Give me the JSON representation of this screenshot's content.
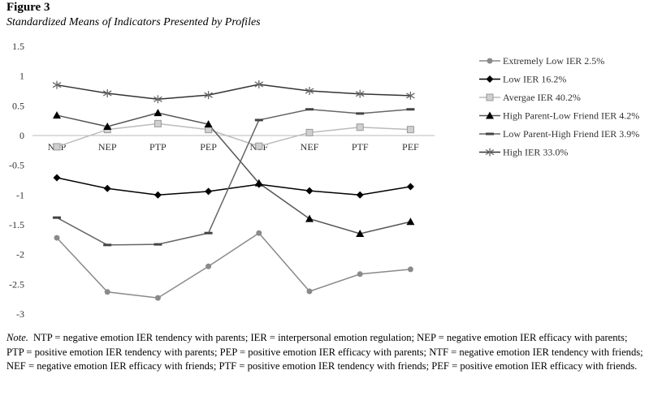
{
  "figure_label": "Figure 3",
  "subtitle": "Standardized Means of Indicators Presented by Profiles",
  "note_label": "Note.",
  "note_text": "NTP = negative emotion IER tendency with parents; IER = interpersonal emotion regulation; NEP = negative emotion IER efficacy with parents; PTP = positive emotion IER tendency with parents; PEP = positive emotion IER efficacy with parents; NTF = negative emotion IER tendency with friends; NEF = negative emotion IER efficacy with friends; PTF = positive emotion IER tendency with friends; PEF = positive emotion IER efficacy with friends.",
  "chart_data": {
    "type": "line",
    "title": "Standardized Means of Indicators Presented by Profiles",
    "xlabel": "",
    "ylabel": "",
    "categories": [
      "NTP",
      "NEP",
      "PTP",
      "PEP",
      "NTF",
      "NEF",
      "PTF",
      "PEF"
    ],
    "ylim": [
      -3,
      1.5
    ],
    "yticks": [
      "1.5",
      "1",
      "0.5",
      "0",
      "-0.5",
      "-1",
      "-1.5",
      "-2",
      "-2.5",
      "-3"
    ],
    "ytick_values": [
      1.5,
      1,
      0.5,
      0,
      -0.5,
      -1,
      -1.5,
      -2,
      -2.5,
      -3
    ],
    "legend_position": "right",
    "grid": false,
    "series": [
      {
        "name": "Extremely Low IER 2.5%",
        "marker": "circle",
        "color": "#8a8a8a",
        "values": [
          -1.72,
          -2.63,
          -2.73,
          -2.2,
          -1.64,
          -2.62,
          -2.33,
          -2.25
        ]
      },
      {
        "name": "Low IER 16.2%",
        "marker": "diamond",
        "color": "#000000",
        "values": [
          -0.71,
          -0.89,
          -1.0,
          -0.94,
          -0.82,
          -0.93,
          -1.0,
          -0.86
        ]
      },
      {
        "name": "Avergae IER 40.2%",
        "marker": "square",
        "color": "#b5b5b5",
        "values": [
          -0.19,
          0.1,
          0.2,
          0.1,
          -0.18,
          0.05,
          0.14,
          0.1
        ]
      },
      {
        "name": "High Parent-Low Friend IER 4.2%",
        "marker": "triangle",
        "color": "#444444",
        "values": [
          0.34,
          0.15,
          0.38,
          0.19,
          -0.8,
          -1.4,
          -1.65,
          -1.45
        ]
      },
      {
        "name": "Low Parent-High Friend IER 3.9%",
        "marker": "dash",
        "color": "#555555",
        "values": [
          -1.38,
          -1.84,
          -1.83,
          -1.64,
          0.26,
          0.44,
          0.37,
          0.44
        ]
      },
      {
        "name": "High IER 33.0%",
        "marker": "star",
        "color": "#333333",
        "values": [
          0.85,
          0.71,
          0.61,
          0.68,
          0.86,
          0.75,
          0.7,
          0.67
        ]
      }
    ]
  }
}
